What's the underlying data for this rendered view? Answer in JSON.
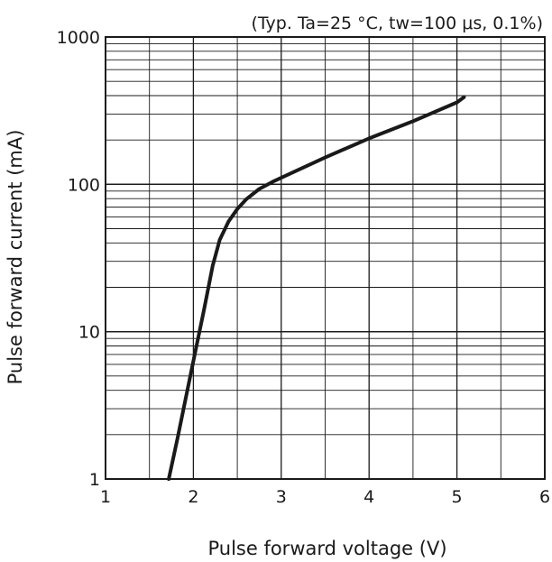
{
  "chart_data": {
    "type": "line",
    "annotation": "(Typ. Ta=25 °C, tw=100 μs, 0.1%)",
    "xlabel": "Pulse forward voltage (V)",
    "ylabel": "Pulse forward current (mA)",
    "x_scale": "linear",
    "y_scale": "log",
    "xlim": [
      1,
      6
    ],
    "ylim": [
      1,
      1000
    ],
    "x_ticks": [
      1,
      2,
      3,
      4,
      5,
      6
    ],
    "y_ticks": [
      1,
      10,
      100,
      1000
    ],
    "x_tick_labels": [
      "1",
      "2",
      "3",
      "4",
      "5",
      "6"
    ],
    "y_tick_labels": [
      "1",
      "10",
      "100",
      "1000"
    ],
    "grid": true,
    "line_color": "#1a1a1a",
    "series": [
      {
        "x": [
          1.72,
          1.82,
          1.92,
          2.02,
          2.12,
          2.22,
          2.3,
          2.4,
          2.5,
          2.6,
          2.75,
          2.9,
          3.1,
          3.5,
          4.0,
          4.5,
          5.0,
          5.08
        ],
        "y": [
          1.0,
          1.9,
          3.7,
          7.2,
          14.0,
          28.0,
          42.0,
          56.0,
          68.0,
          79.0,
          93.0,
          104.0,
          118.0,
          152.0,
          205.0,
          268.0,
          360.0,
          390.0
        ]
      }
    ]
  }
}
